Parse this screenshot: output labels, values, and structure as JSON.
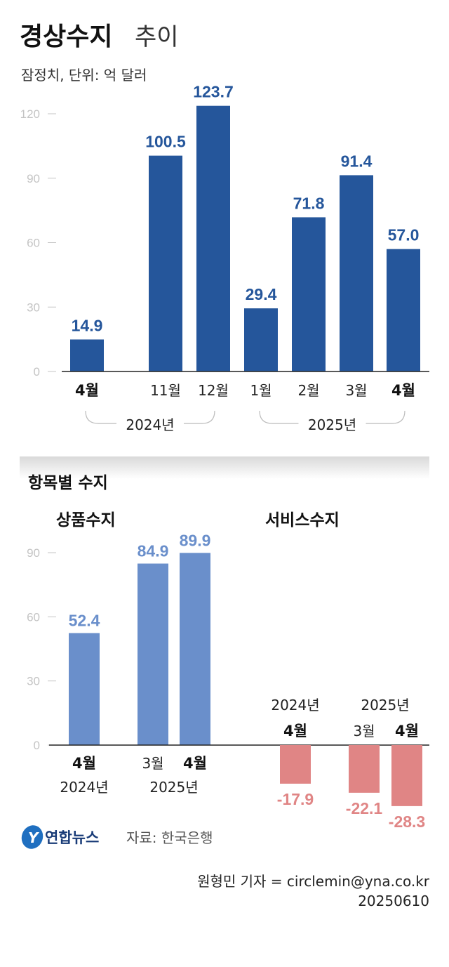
{
  "header": {
    "title_bold": "경상수지",
    "title_light": "추이",
    "subtitle": "잠정치, 단위: 억 달러"
  },
  "colors": {
    "current_account": "#25569b",
    "goods": "#6a8fcb",
    "services": "#e08585",
    "tick": "#c4c4c4"
  },
  "chart_data": [
    {
      "type": "bar",
      "title": "경상수지 추이",
      "subtitle": "잠정치, 단위: 억 달러",
      "categories": [
        "4월",
        "11월",
        "12월",
        "1월",
        "2월",
        "3월",
        "4월"
      ],
      "groups": [
        {
          "label": "2024년",
          "members": [
            0,
            1,
            2
          ]
        },
        {
          "label": "2025년",
          "members": [
            3,
            4,
            5,
            6
          ]
        }
      ],
      "values": [
        14.9,
        100.5,
        123.7,
        29.4,
        71.8,
        91.4,
        57.0
      ],
      "value_labels": [
        "14.9",
        "100.5",
        "123.7",
        "29.4",
        "71.8",
        "91.4",
        "57.0"
      ],
      "yticks": [
        "0",
        "30",
        "60",
        "90",
        "120"
      ],
      "ylim": [
        0,
        120
      ],
      "grid": false
    },
    {
      "type": "bar",
      "section_title": "항목별 수지",
      "title": "상품수지",
      "categories": [
        "4월",
        "3월",
        "4월"
      ],
      "category_years": [
        "2024년",
        "2025년"
      ],
      "values": [
        52.4,
        84.9,
        89.9
      ],
      "value_labels": [
        "52.4",
        "84.9",
        "89.9"
      ],
      "yticks": [
        "0",
        "30",
        "60",
        "90"
      ],
      "ylim": [
        0,
        90
      ],
      "grid": false
    },
    {
      "type": "bar",
      "title": "서비스수지",
      "categories": [
        "4월",
        "3월",
        "4월"
      ],
      "category_years": [
        "2024년",
        "2025년"
      ],
      "values": [
        -17.9,
        -22.1,
        -28.3
      ],
      "value_labels": [
        "-17.9",
        "-22.1",
        "-28.3"
      ],
      "grid": false
    }
  ],
  "footer": {
    "logo_text": "연합뉴스",
    "source": "자료: 한국은행",
    "credit": "원형민 기자 = circlemin@yna.co.kr",
    "date": "20250610"
  }
}
